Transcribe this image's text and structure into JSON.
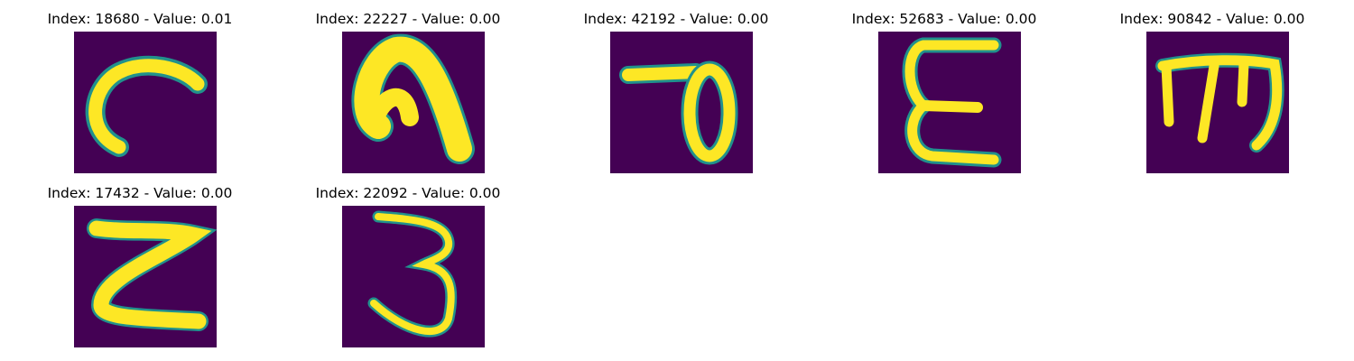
{
  "figure": {
    "panels": [
      {
        "title": "Index: 18680 - Value: 0.01",
        "glyph": "hook-shape"
      },
      {
        "title": "Index: 22227 - Value: 0.00",
        "glyph": "arch-shape"
      },
      {
        "title": "Index: 42192 - Value: 0.00",
        "glyph": "loop-shape"
      },
      {
        "title": "Index: 52683 - Value: 0.00",
        "glyph": "epsilon-shape"
      },
      {
        "title": "Index: 90842 - Value: 0.00",
        "glyph": "trident-shape"
      },
      {
        "title": "Index: 17432 - Value: 0.00",
        "glyph": "z-shape"
      },
      {
        "title": "Index: 22092 - Value: 0.00",
        "glyph": "three-shape"
      }
    ],
    "colors": {
      "background": "#440154",
      "stroke": "#fde725",
      "edge": "#21918c"
    }
  }
}
